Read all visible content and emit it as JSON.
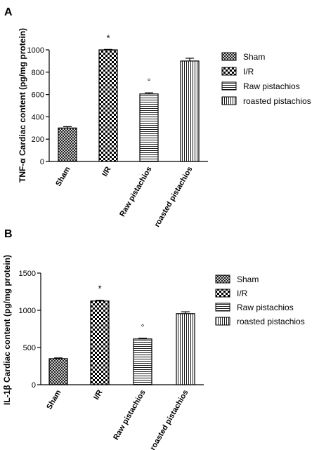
{
  "chart_data": [
    {
      "panel_label": "A",
      "type": "bar",
      "ylabel": "TNF-α Cardiac content (pg/mg protein)",
      "categories": [
        "Sham",
        "I/R",
        "Raw pistachios",
        "roasted pistachios"
      ],
      "values": [
        300,
        1000,
        605,
        900
      ],
      "errors": [
        12,
        4,
        10,
        25
      ],
      "annotations": [
        "",
        "*",
        "°",
        ""
      ],
      "yticks": [
        0,
        200,
        400,
        600,
        800,
        1000
      ],
      "ylim": [
        0,
        1000
      ],
      "grid": false,
      "legend_position": "right",
      "legend": [
        "Sham",
        "I/R",
        "Raw pistachios",
        "roasted pistachios"
      ],
      "patterns": [
        "crosshatch",
        "checker",
        "horizontal",
        "vertical"
      ]
    },
    {
      "panel_label": "B",
      "type": "bar",
      "ylabel": "IL-1β Cardiac content (pg/mg protein)",
      "categories": [
        "Sham",
        "I/R",
        "Raw pistachios",
        "roasted pistachios"
      ],
      "values": [
        350,
        1125,
        615,
        955
      ],
      "errors": [
        10,
        10,
        10,
        25
      ],
      "annotations": [
        "",
        "*",
        "°",
        ""
      ],
      "yticks": [
        0,
        500,
        1000,
        1500
      ],
      "ylim": [
        0,
        1500
      ],
      "grid": false,
      "legend_position": "right",
      "legend": [
        "Sham",
        "I/R",
        "Raw pistachios",
        "roasted pistachios"
      ],
      "patterns": [
        "crosshatch",
        "checker",
        "horizontal",
        "vertical"
      ]
    }
  ]
}
